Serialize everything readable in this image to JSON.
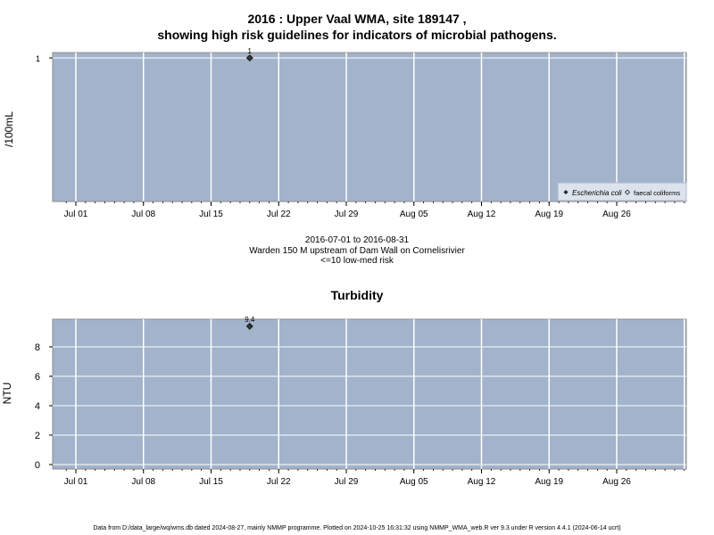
{
  "header": {
    "title_line1": "2016 : Upper Vaal WMA, site 189147 ,",
    "title_line2": "showing high risk guidelines for indicators of microbial pathogens."
  },
  "info": {
    "date_range": "2016-07-01 to 2016-08-31",
    "site_desc": "Warden 150 M upstream of Dam Wall on Cornelisrivier",
    "risk_note": "<=10 low-med risk"
  },
  "footer": {
    "text": "Data from D:/data_large/wq/wms.db dated 2024-08-27, mainly NMMP programme. Plotted on 2024-10-25 16:31:32 using NMMP_WMA_web.R ver 9.3 under R version 4.4.1 (2024-06-14 ucrt)"
  },
  "colors": {
    "panel_bg": "#a2b3cb",
    "grid": "#ffffff",
    "point": "#333333"
  },
  "chart_data": [
    {
      "type": "scatter",
      "title": "",
      "ylabel": "/100mL",
      "xlabel": "",
      "x_ticks": [
        "Jul 01",
        "Jul 08",
        "Jul 15",
        "Jul 22",
        "Jul 29",
        "Aug 05",
        "Aug 12",
        "Aug 19",
        "Aug 26"
      ],
      "x_range": [
        "2016-06-30",
        "2016-09-05"
      ],
      "y_ticks": [
        1
      ],
      "legend": {
        "placement": "bottom-right",
        "items": [
          {
            "label": "Escherichia coli",
            "marker": "filled-diamond",
            "italic": true
          },
          {
            "label": "faecal coliforms",
            "marker": "open-diamond",
            "italic": false
          }
        ]
      },
      "series": [
        {
          "name": "Escherichia coli",
          "points": [
            {
              "x": "2016-07-19",
              "y": 1,
              "label": "1"
            }
          ]
        }
      ]
    },
    {
      "type": "scatter",
      "title": "Turbidity",
      "ylabel": "NTU",
      "xlabel": "",
      "x_ticks": [
        "Jul 01",
        "Jul 08",
        "Jul 15",
        "Jul 22",
        "Jul 29",
        "Aug 05",
        "Aug 12",
        "Aug 19",
        "Aug 26"
      ],
      "x_range": [
        "2016-06-30",
        "2016-09-05"
      ],
      "y_ticks": [
        0,
        2,
        4,
        6,
        8
      ],
      "ylim": [
        -0.5,
        9.9
      ],
      "series": [
        {
          "points": [
            {
              "x": "2016-07-19",
              "y": 9.4,
              "label": "9.4"
            }
          ]
        }
      ]
    }
  ]
}
